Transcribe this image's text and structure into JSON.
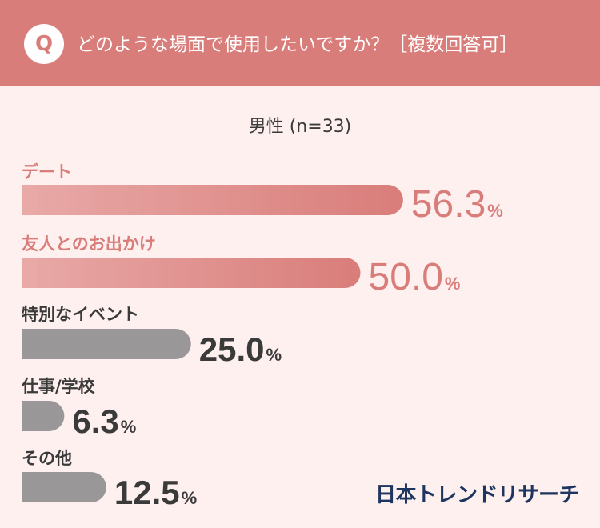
{
  "header": {
    "badge": "Q",
    "question": "どのような場面で使用したいですか？［複数回答可］"
  },
  "chart_data": {
    "type": "bar",
    "orientation": "horizontal",
    "title": "",
    "subtitle": "男性 (n=33)",
    "categories": [
      "デート",
      "友人とのお出かけ",
      "特別なイベント",
      "仕事/学校",
      "その他"
    ],
    "values": [
      56.3,
      50.0,
      25.0,
      6.3,
      12.5
    ],
    "unit": "%",
    "value_labels": [
      "56.3",
      "50.0",
      "25.0",
      "6.3",
      "12.5"
    ],
    "highlight_count": 2,
    "xlim": [
      0,
      100
    ],
    "legend": "none",
    "grid": false
  },
  "colors": {
    "header_bg": "#d97d7a",
    "page_bg": "#fdf0ef",
    "highlight_start": "#e8a9a7",
    "highlight_end": "#d97d7a",
    "highlight_text": "#d97d7a",
    "gray_bar": "#999797",
    "dark_text": "#3a3a3a",
    "brand": "#1e3560"
  },
  "brand": "日本トレンドリサーチ"
}
